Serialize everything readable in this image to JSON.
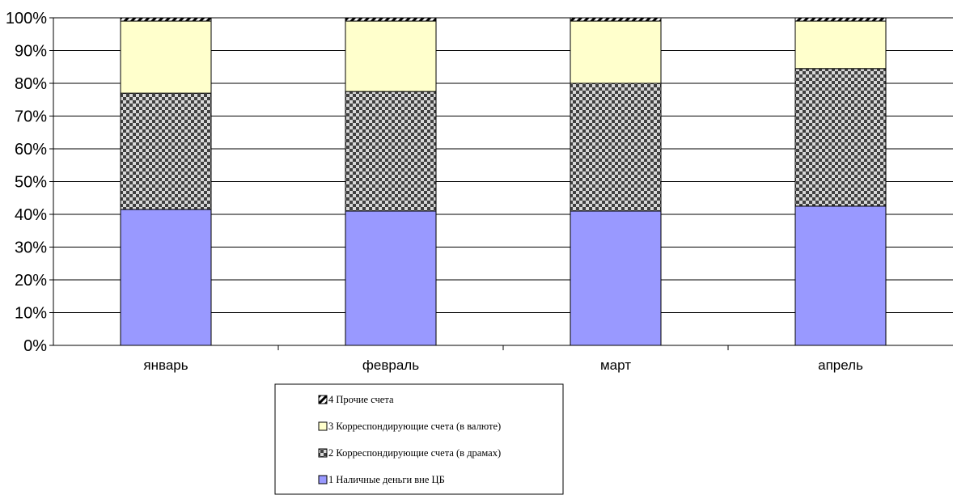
{
  "chart_data": {
    "type": "bar",
    "stacked": true,
    "percent": true,
    "categories": [
      "январь",
      "февраль",
      "март",
      "апрель"
    ],
    "series": [
      {
        "name": "1 Наличные деньги вне ЦБ",
        "values": [
          41.5,
          41.0,
          41.0,
          42.5
        ],
        "color": "#9999ff",
        "pattern": "solid"
      },
      {
        "name": "2 Корреспондирующие счета (в драмах)",
        "values": [
          35.5,
          36.5,
          39.0,
          42.0
        ],
        "color": "#808080",
        "pattern": "checker"
      },
      {
        "name": "3 Корреспондирующие счета (в валюте)",
        "values": [
          22.0,
          21.5,
          19.0,
          14.5
        ],
        "color": "#ffffcc",
        "pattern": "solid"
      },
      {
        "name": "4 Прочие счета",
        "values": [
          1.0,
          1.0,
          1.0,
          1.0
        ],
        "color": "#000000",
        "pattern": "diagonal"
      }
    ],
    "y_ticks": [
      "0%",
      "10%",
      "20%",
      "30%",
      "40%",
      "50%",
      "60%",
      "70%",
      "80%",
      "90%",
      "100%"
    ],
    "ylim": [
      0,
      100
    ],
    "grid": true,
    "legend_position": "bottom-center",
    "legend_order": [
      3,
      2,
      1,
      0
    ],
    "title": "",
    "xlabel": "",
    "ylabel": ""
  }
}
